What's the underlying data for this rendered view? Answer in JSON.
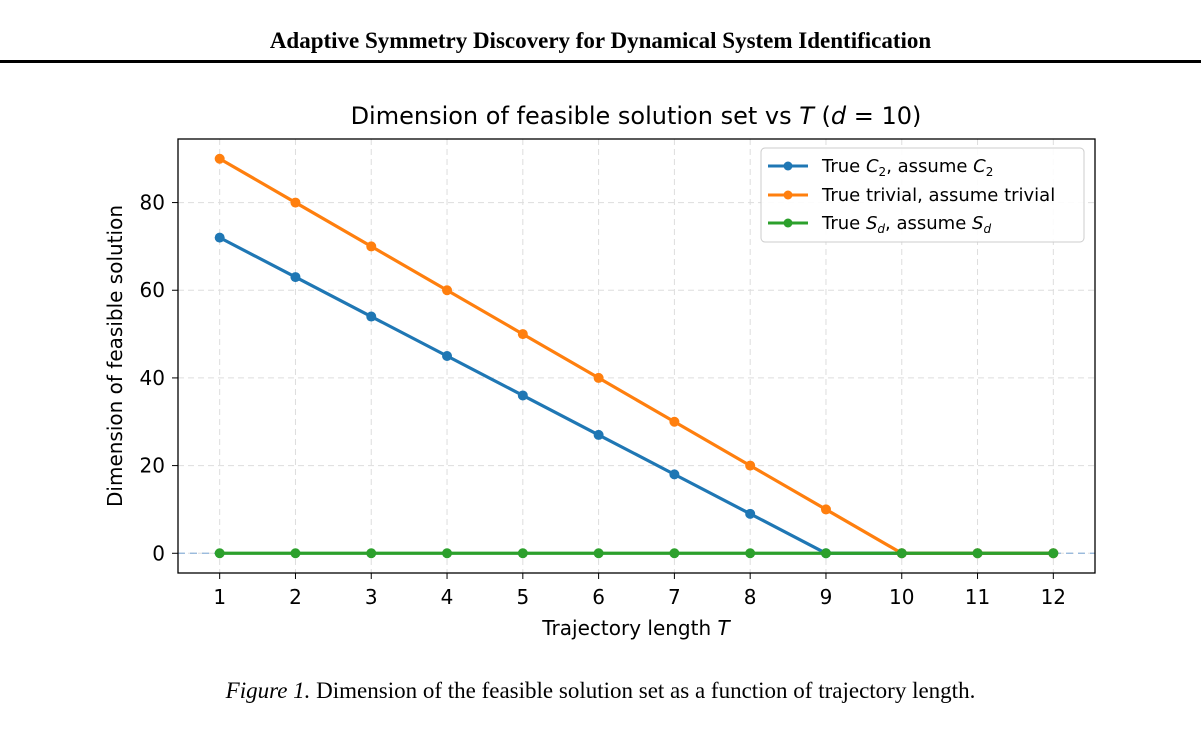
{
  "header": {
    "title": "Adaptive Symmetry Discovery for Dynamical System Identification"
  },
  "caption": {
    "label": "Figure 1.",
    "text": "Dimension of the feasible solution set as a function of trajectory length."
  },
  "chart_data": {
    "type": "line",
    "title": "Dimension of feasible solution set vs T (d = 10)",
    "xlabel": "Trajectory length T",
    "ylabel": "Dimension of feasible solution",
    "x": [
      1,
      2,
      3,
      4,
      5,
      6,
      7,
      8,
      9,
      10,
      11,
      12
    ],
    "xlim": [
      0.45,
      12.55
    ],
    "ylim": [
      -4.5,
      94.5
    ],
    "xticks": [
      1,
      2,
      3,
      4,
      5,
      6,
      7,
      8,
      9,
      10,
      11,
      12
    ],
    "yticks": [
      0,
      20,
      40,
      60,
      80
    ],
    "grid": true,
    "legend_position": "top-right",
    "reference_line": {
      "y": 0,
      "color": "#8fb3d9",
      "style": "dashed"
    },
    "series": [
      {
        "name": "True C2, assume C2",
        "color": "#1f77b4",
        "values": [
          72,
          63,
          54,
          45,
          36,
          27,
          18,
          9,
          0,
          0,
          0,
          0
        ]
      },
      {
        "name": "True trivial, assume trivial",
        "color": "#ff7f0e",
        "values": [
          90,
          80,
          70,
          60,
          50,
          40,
          30,
          20,
          10,
          0,
          0,
          0
        ]
      },
      {
        "name": "True Sd, assume Sd",
        "color": "#2ca02c",
        "values": [
          0,
          0,
          0,
          0,
          0,
          0,
          0,
          0,
          0,
          0,
          0,
          0
        ]
      }
    ]
  }
}
